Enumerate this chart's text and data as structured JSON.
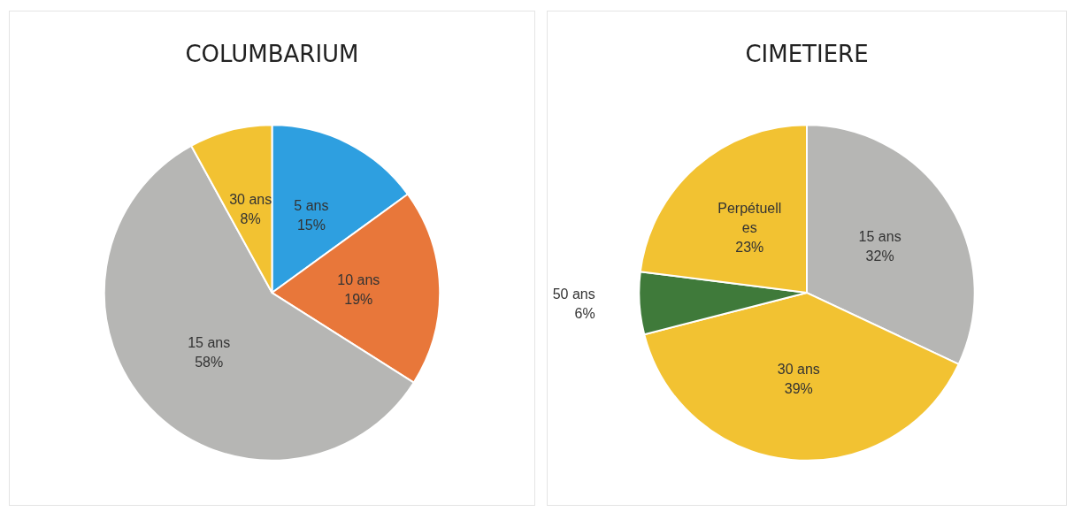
{
  "chart_data": [
    {
      "type": "pie",
      "title": "COLUMBARIUM",
      "categories": [
        "5 ans",
        "10 ans",
        "15 ans",
        "30 ans"
      ],
      "values": [
        15,
        19,
        58,
        8
      ],
      "colors": [
        "#2e9fe0",
        "#e8773a",
        "#b6b6b4",
        "#f2c232"
      ],
      "value_labels": [
        "15%",
        "19%",
        "58%",
        "8%"
      ],
      "legend": false
    },
    {
      "type": "pie",
      "title": "CIMETIERE",
      "categories": [
        "15 ans",
        "30 ans",
        "50 ans",
        "Perpétuelles"
      ],
      "values": [
        32,
        39,
        6,
        23
      ],
      "colors": [
        "#b6b6b4",
        "#f2c232",
        "#3f7a3a",
        "#f2c232"
      ],
      "value_labels": [
        "32%",
        "39%",
        "6%",
        "23%"
      ],
      "legend": false
    }
  ]
}
